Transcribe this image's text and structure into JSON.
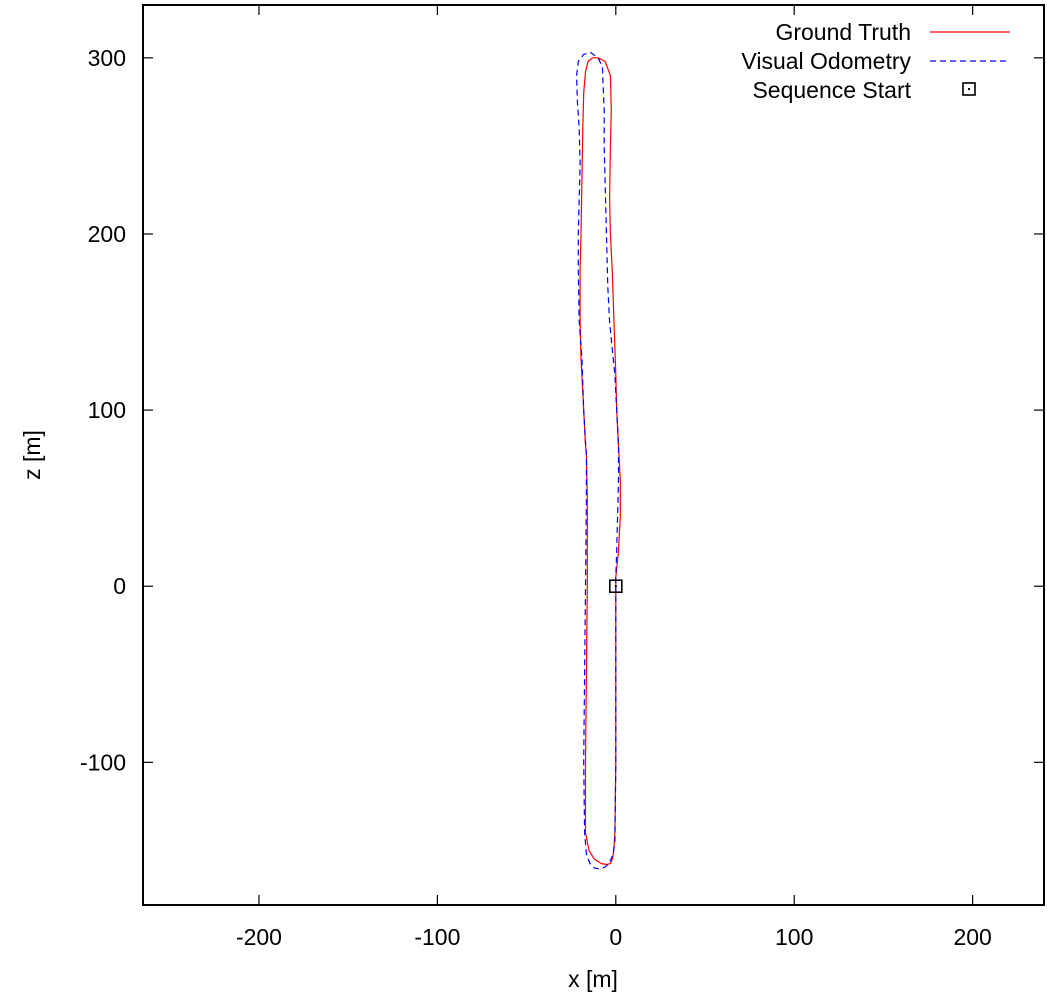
{
  "chart_data": {
    "type": "line",
    "title": "",
    "xlabel": "x [m]",
    "ylabel": "z [m]",
    "xlim": [
      -265,
      240
    ],
    "ylim": [
      -181,
      330
    ],
    "xticks": [
      -200,
      -100,
      0,
      100,
      200
    ],
    "yticks": [
      -100,
      0,
      100,
      200,
      300
    ],
    "xtick_labels": [
      "-200",
      "-100",
      "0",
      "100",
      "200"
    ],
    "ytick_labels": [
      "-100",
      "0",
      "100",
      "200",
      "300"
    ],
    "grid": false,
    "legend_position": "top-right",
    "series": [
      {
        "name": "Ground Truth",
        "color": "#ff0000",
        "style": "solid",
        "x": [
          0,
          0,
          -0.5,
          -1,
          -1.5,
          -2,
          -3,
          -5,
          -8,
          -12,
          -15,
          -17,
          -17,
          -16.5,
          -16,
          -16,
          -16.5,
          -17,
          -18,
          -19.5,
          -20,
          -20,
          -19.5,
          -19,
          -18.5,
          -18,
          -17,
          -15.5,
          -13,
          -10,
          -6,
          -3,
          -2.5,
          -3,
          -3.5,
          -3,
          -2,
          -1,
          0,
          0.5,
          1.5,
          2.5,
          2.5,
          2.5,
          2,
          1.5,
          0.5,
          0,
          0
        ],
        "y": [
          0,
          -100,
          -140,
          -148,
          -153,
          -155,
          -157.5,
          -158,
          -157.5,
          -155,
          -150,
          -140,
          -100,
          -50,
          0,
          50,
          75,
          80,
          100,
          130,
          150,
          180,
          200,
          230,
          260,
          280,
          292,
          298,
          300,
          300,
          298,
          290,
          270,
          250,
          220,
          200,
          180,
          150,
          120,
          100,
          80,
          60,
          50,
          40,
          30,
          20,
          10,
          5,
          0
        ]
      },
      {
        "name": "Visual Odometry",
        "color": "#0000ff",
        "style": "dashed",
        "x": [
          0,
          0,
          -0.5,
          -1.5,
          -3.5,
          -6,
          -9,
          -12,
          -14.5,
          -16.5,
          -17.5,
          -18,
          -17.5,
          -17,
          -16.5,
          -16.5,
          -17,
          -18,
          -19,
          -20.5,
          -21,
          -21,
          -20.5,
          -20,
          -20.5,
          -21.5,
          -22,
          -21,
          -18,
          -14,
          -10,
          -7.5,
          -6.5,
          -6.5,
          -6,
          -5.5,
          -5,
          -4.5,
          -3.5,
          -2,
          -0.5,
          0.5,
          1.5,
          1.5,
          1,
          0.5,
          0,
          0
        ],
        "y": [
          0,
          -100,
          -145,
          -152,
          -157,
          -159.5,
          -160.5,
          -160,
          -157.5,
          -152,
          -140,
          -100,
          -50,
          0,
          50,
          75,
          82,
          100,
          130,
          150,
          180,
          200,
          220,
          240,
          260,
          275,
          290,
          298,
          302,
          303,
          300,
          295,
          270,
          250,
          230,
          210,
          190,
          170,
          150,
          135,
          120,
          100,
          80,
          60,
          40,
          20,
          5,
          0
        ]
      }
    ],
    "markers": [
      {
        "name": "Sequence Start",
        "x": 0,
        "y": 0,
        "shape": "open-square",
        "color": "#000000"
      }
    ]
  }
}
